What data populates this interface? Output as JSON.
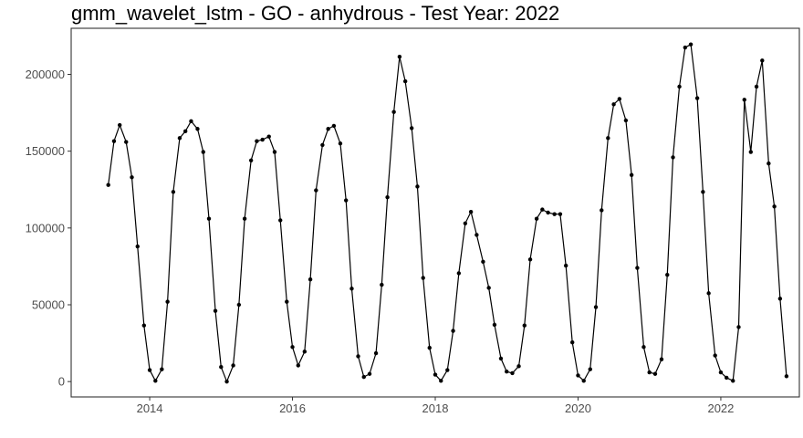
{
  "chart_data": {
    "type": "line",
    "title": "gmm_wavelet_lstm - GO - anhydrous - Test Year: 2022",
    "xlabel": "",
    "ylabel": "",
    "xlim": [
      2012.9,
      2023.1
    ],
    "ylim": [
      -10000,
      230000
    ],
    "x_ticks": [
      2014,
      2016,
      2018,
      2020,
      2022
    ],
    "x_tick_labels": [
      "2014",
      "2016",
      "2018",
      "2020",
      "2022"
    ],
    "y_ticks": [
      0,
      50000,
      100000,
      150000,
      200000
    ],
    "y_tick_labels": [
      "0",
      "50000",
      "100000",
      "150000",
      "200000"
    ],
    "grid": false,
    "legend": "none",
    "marker": "point",
    "colors": {
      "line": "#000000",
      "point": "#000000",
      "panel_border": "#333333"
    },
    "series": [
      {
        "x": [
          2013.42,
          2013.5,
          2013.58,
          2013.67,
          2013.75,
          2013.83,
          2013.92,
          2014.0,
          2014.08,
          2014.17,
          2014.25,
          2014.33,
          2014.42,
          2014.5,
          2014.58,
          2014.67,
          2014.75,
          2014.83,
          2014.92,
          2015.0,
          2015.08,
          2015.17,
          2015.25,
          2015.33,
          2015.42,
          2015.5,
          2015.58,
          2015.67,
          2015.75,
          2015.83,
          2015.92,
          2016.0,
          2016.08,
          2016.17,
          2016.25,
          2016.33,
          2016.42,
          2016.5,
          2016.58,
          2016.67,
          2016.75,
          2016.83,
          2016.92,
          2017.0,
          2017.08,
          2017.17,
          2017.25,
          2017.33,
          2017.42,
          2017.5,
          2017.58,
          2017.67,
          2017.75,
          2017.83,
          2017.92,
          2018.0,
          2018.08,
          2018.17,
          2018.25,
          2018.33,
          2018.42,
          2018.5,
          2018.58,
          2018.67,
          2018.75,
          2018.83,
          2018.92,
          2019.0,
          2019.08,
          2019.17,
          2019.25,
          2019.33,
          2019.42,
          2019.5,
          2019.58,
          2019.67,
          2019.75,
          2019.83,
          2019.92,
          2020.0,
          2020.08,
          2020.17,
          2020.25,
          2020.33,
          2020.42,
          2020.5,
          2020.58,
          2020.67,
          2020.75,
          2020.83,
          2020.92,
          2021.0,
          2021.08,
          2021.17,
          2021.25,
          2021.33,
          2021.42,
          2021.5,
          2021.58,
          2021.67,
          2021.75,
          2021.83,
          2021.92,
          2022.0,
          2022.08,
          2022.17,
          2022.25,
          2022.33,
          2022.42,
          2022.5,
          2022.58,
          2022.67,
          2022.75,
          2022.83,
          2022.92
        ],
        "y": [
          128000,
          156500,
          167000,
          156000,
          133000,
          88000,
          36500,
          7500,
          500,
          8000,
          52000,
          123500,
          158500,
          163000,
          169500,
          164500,
          149500,
          106000,
          46000,
          9500,
          0,
          10500,
          50000,
          106000,
          144000,
          156500,
          157500,
          159500,
          149500,
          105000,
          52000,
          22500,
          10500,
          19500,
          66500,
          124500,
          154000,
          164500,
          166500,
          155000,
          118000,
          60500,
          16500,
          3000,
          5000,
          18500,
          63000,
          120000,
          175500,
          211500,
          195500,
          165000,
          127000,
          67500,
          22000,
          4500,
          500,
          7500,
          33000,
          70500,
          103000,
          110500,
          95500,
          78000,
          61000,
          37000,
          15000,
          6500,
          5500,
          10000,
          36500,
          79500,
          106000,
          112000,
          110000,
          109000,
          109000,
          75500,
          25500,
          4000,
          500,
          8000,
          48500,
          111500,
          158500,
          180500,
          184000,
          170000,
          134500,
          74000,
          22500,
          6000,
          5000,
          14500,
          69500,
          146000,
          192000,
          217500,
          219500,
          184500,
          123500,
          57500,
          17000,
          6000,
          2500,
          500,
          35500,
          183500,
          149500,
          192000,
          209000,
          142000,
          114000,
          54000,
          3500
        ]
      }
    ]
  }
}
